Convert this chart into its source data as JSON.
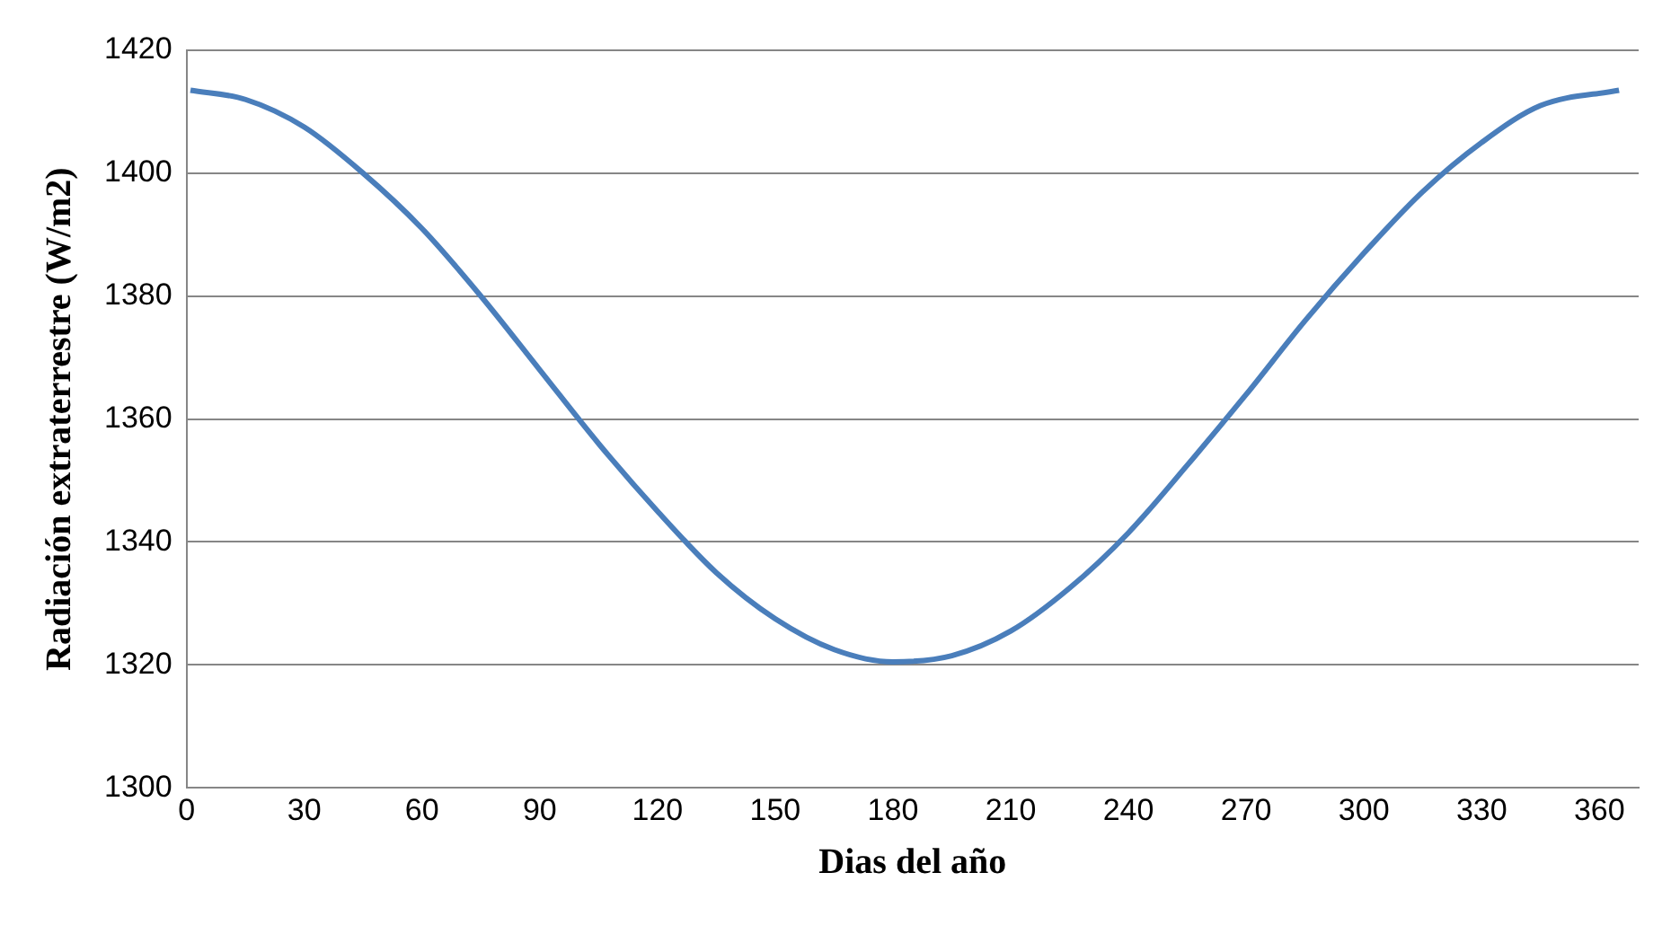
{
  "chart_data": {
    "type": "line",
    "xlabel": "Dias del año",
    "ylabel": "Radiación extraterrestre (W/m2)",
    "x": [
      1,
      15,
      30,
      45,
      60,
      75,
      90,
      105,
      120,
      135,
      150,
      165,
      180,
      195,
      210,
      225,
      240,
      255,
      270,
      285,
      300,
      315,
      330,
      345,
      365
    ],
    "series": [
      {
        "color": "#4a7ebb",
        "values": [
          1413.5,
          1412,
          1407.5,
          1400,
          1391,
          1380,
          1368,
          1356,
          1345,
          1335,
          1327.5,
          1322.5,
          1320.5,
          1321.5,
          1325.5,
          1332.5,
          1341.5,
          1352.5,
          1364,
          1376,
          1387,
          1397,
          1405,
          1411,
          1413.5
        ]
      }
    ],
    "xlim": [
      0,
      370
    ],
    "xticks": [
      0,
      30,
      60,
      90,
      120,
      150,
      180,
      210,
      240,
      270,
      300,
      330,
      360
    ],
    "ylim": [
      1300,
      1420
    ],
    "yticks": [
      1300,
      1320,
      1340,
      1360,
      1380,
      1400,
      1420
    ],
    "grid": "y",
    "legend": false,
    "marker": "none",
    "line_style": "solid"
  }
}
